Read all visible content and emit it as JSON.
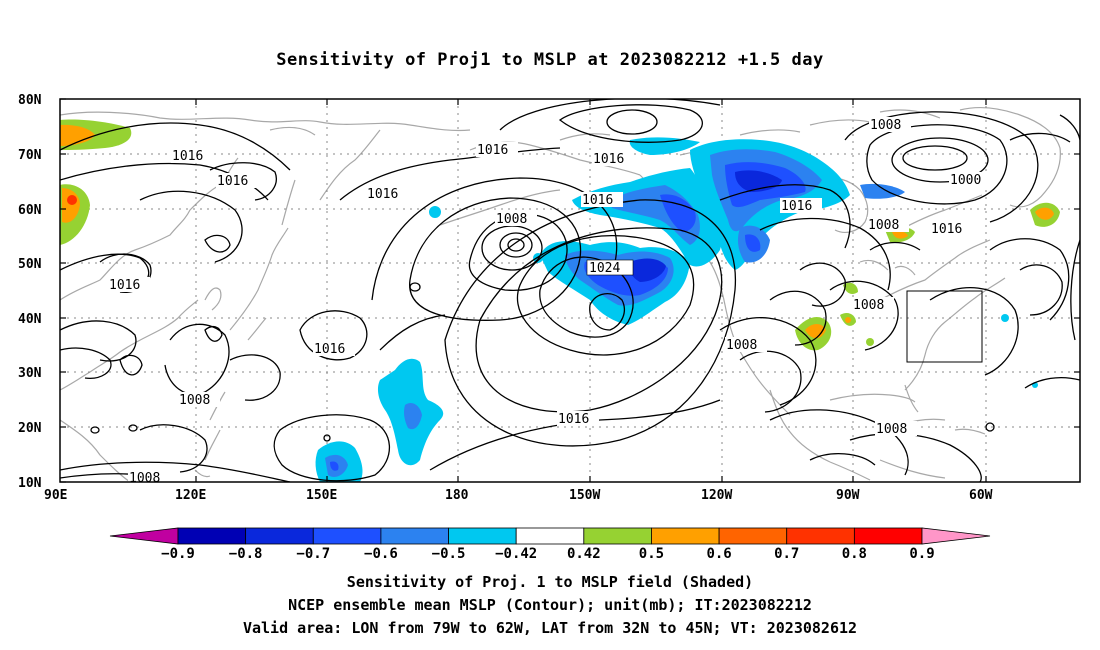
{
  "title": "Sensitivity of Proj1 to MSLP at 2023082212 +1.5 day",
  "lat_labels": [
    "80N",
    "70N",
    "60N",
    "50N",
    "40N",
    "30N",
    "20N",
    "10N"
  ],
  "lon_labels": [
    "90E",
    "120E",
    "150E",
    "180",
    "150W",
    "120W",
    "90W",
    "60W"
  ],
  "contour_labels": {
    "c1016_a": "1016",
    "c1016_b": "1016",
    "c1016_c": "1016",
    "c1016_d": "1016",
    "c1016_e": "1016",
    "c1016_f": "1016",
    "c1016_g": "1016",
    "c1016_h": "1016",
    "c1016_i": "1016",
    "c1016_j": "1016",
    "c1008_a": "1008",
    "c1008_b": "1008",
    "c1008_c": "1008",
    "c1008_d": "1008",
    "c1008_e": "1008",
    "c1008_f": "1008",
    "c1008_g": "1008",
    "c1008_h": "1008",
    "c1000_a": "1000",
    "c1024_a": "1024"
  },
  "colorbar": {
    "labels": [
      "-0.9",
      "-0.8",
      "-0.7",
      "-0.6",
      "-0.5",
      "-0.42",
      "0.42",
      "0.5",
      "0.6",
      "0.7",
      "0.8",
      "0.9"
    ],
    "colors": [
      "#c000a0",
      "#0000b4",
      "#0a28dc",
      "#1e50ff",
      "#2c82f0",
      "#00c8f0",
      "#ffffff",
      "#96d232",
      "#ffa000",
      "#ff6400",
      "#ff3200",
      "#ff0000",
      "#ff96c8"
    ]
  },
  "caption": {
    "line1": "Sensitivity of Proj. 1 to MSLP field (Shaded)",
    "line2": "NCEP ensemble mean MSLP (Contour); unit(mb); IT:2023082212",
    "line3": "Valid area: LON from 79W to 62W, LAT from 32N to 45N; VT: 2023082612"
  },
  "valid_box": {
    "lon_min": -79,
    "lon_max": -62,
    "lat_min": 32,
    "lat_max": 45
  }
}
